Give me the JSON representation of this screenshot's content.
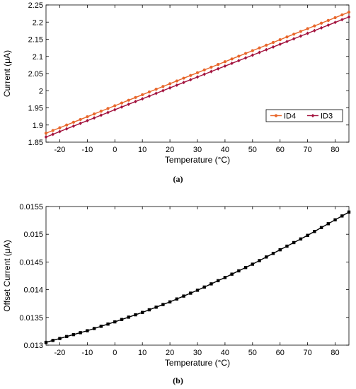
{
  "chart_data": [
    {
      "type": "line",
      "panel_caption": "(a)",
      "xlabel": "Temperature (°C)",
      "ylabel": "Current (μA)",
      "xlim": [
        -25,
        85
      ],
      "ylim": [
        1.85,
        2.25
      ],
      "xticks": [
        "-20",
        "-10",
        "0",
        "10",
        "20",
        "30",
        "40",
        "50",
        "60",
        "70",
        "80"
      ],
      "yticks": [
        "1.85",
        "1.9",
        "1.95",
        "2",
        "2.05",
        "2.1",
        "2.15",
        "2.2",
        "2.25"
      ],
      "x": [
        -25,
        85
      ],
      "x_step": 2.5,
      "grid": false,
      "legend_position": "bottom-right",
      "series": [
        {
          "name": "ID4",
          "color": "#e8662a",
          "marker": "circle",
          "values": [
            1.876,
            2.229
          ]
        },
        {
          "name": "ID3",
          "color": "#a3123d",
          "marker": "diamond",
          "values": [
            1.865,
            2.215
          ]
        }
      ]
    },
    {
      "type": "line",
      "panel_caption": "(b)",
      "xlabel": "Temperature (°C)",
      "ylabel": "Offset Current (μA)",
      "xlim": [
        -25,
        85
      ],
      "ylim": [
        0.013,
        0.0155
      ],
      "xticks": [
        "-20",
        "-10",
        "0",
        "10",
        "20",
        "30",
        "40",
        "50",
        "60",
        "70",
        "80"
      ],
      "yticks": [
        "0.013",
        "0.0135",
        "0.014",
        "0.0145",
        "0.015",
        "0.0155"
      ],
      "x": [
        -25,
        -20,
        -10,
        0,
        10,
        20,
        30,
        40,
        50,
        60,
        70,
        80,
        85
      ],
      "x_step": 2.5,
      "grid": false,
      "series": [
        {
          "name": "",
          "color": "#000000",
          "marker": "square",
          "values": [
            0.01305,
            0.01312,
            0.01326,
            0.01342,
            0.01359,
            0.01378,
            0.01399,
            0.01422,
            0.01446,
            0.01472,
            0.01498,
            0.01526,
            0.0154
          ]
        }
      ]
    }
  ]
}
